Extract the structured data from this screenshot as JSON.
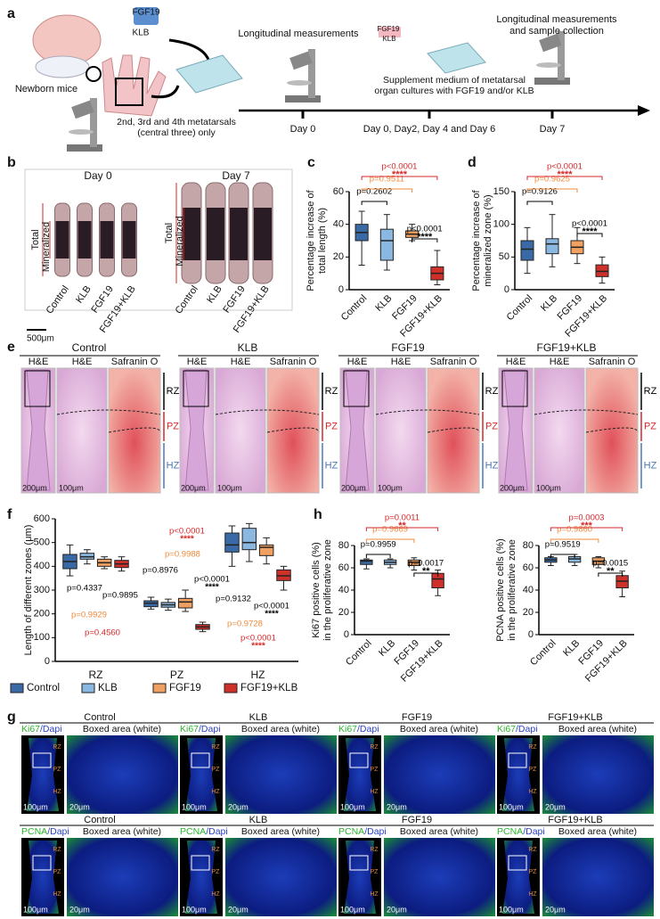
{
  "panel_labels": [
    "a",
    "b",
    "c",
    "d",
    "e",
    "f",
    "g",
    "h"
  ],
  "panel_a": {
    "newborn": "Newborn mice",
    "fgf19": "FGF19",
    "klb": "KLB",
    "metatarsals": [
      "2nd, 3rd and 4th metatarsals",
      "(central three) only"
    ],
    "step1": "Longitudinal measurements",
    "step2": [
      "Supplement medium of metatarsal",
      "organ cultures with FGF19 and/or KLB"
    ],
    "step3": [
      "Longitudinal measurements",
      "and sample collection"
    ],
    "timeline": [
      "Day 0",
      "Day 0, Day2, Day 4 and Day 6",
      "Day 7"
    ]
  },
  "panel_b": {
    "day0": "Day 0",
    "day7": "Day 7",
    "total": "Total",
    "mineralized": "Mineralized",
    "categories": [
      "Control",
      "KLB",
      "FGF19",
      "FGF19+KLB"
    ],
    "scale_bar": "500μm"
  },
  "chart_data": [
    {
      "type": "box",
      "ylabel": [
        "Percentage increase of",
        "total length (%)"
      ],
      "categories": [
        "Control",
        "KLB",
        "FGF19",
        "FGF19+KLB"
      ],
      "colors": [
        "#3a6aa6",
        "#8ab8e0",
        "#f0a060",
        "#d0302a"
      ],
      "min": [
        15,
        12,
        30,
        3
      ],
      "q1": [
        30,
        18,
        32,
        6
      ],
      "median": [
        35,
        30,
        34,
        10
      ],
      "q3": [
        40,
        37,
        36,
        14
      ],
      "max": [
        48,
        46,
        40,
        24
      ],
      "ylim": [
        0,
        60
      ],
      "yticks": [
        0,
        20,
        40,
        60
      ],
      "annotations": [
        {
          "text": "p=0.2602",
          "color": "#000000"
        },
        {
          "text": "p=0.9511",
          "color": "#f08a3c"
        },
        {
          "text": "p<0.0001",
          "stars": "****",
          "color": "#d62728"
        },
        {
          "text": "p<0.0001",
          "stars": "****",
          "color": "#000000"
        }
      ]
    },
    {
      "type": "box",
      "ylabel": [
        "Percentage increase of",
        "mineralized zone (%)"
      ],
      "categories": [
        "Control",
        "KLB",
        "FGF19",
        "FGF19+KLB"
      ],
      "colors": [
        "#3a6aa6",
        "#8ab8e0",
        "#f0a060",
        "#d0302a"
      ],
      "min": [
        25,
        35,
        40,
        10
      ],
      "q1": [
        45,
        55,
        55,
        20
      ],
      "median": [
        62,
        70,
        65,
        28
      ],
      "q3": [
        75,
        78,
        75,
        38
      ],
      "max": [
        95,
        115,
        95,
        50
      ],
      "ylim": [
        0,
        150
      ],
      "yticks": [
        0,
        50,
        100,
        150
      ],
      "annotations": [
        {
          "text": "p=0.9126",
          "color": "#000000"
        },
        {
          "text": "p=0.9625",
          "color": "#f08a3c"
        },
        {
          "text": "p<0.0001",
          "stars": "****",
          "color": "#d62728"
        },
        {
          "text": "p<0.0001",
          "stars": "****",
          "color": "#000000"
        }
      ]
    },
    {
      "type": "grouped_box",
      "ylabel": [
        "Length of different zones (μm)"
      ],
      "categories": [
        "RZ",
        "PZ",
        "HZ"
      ],
      "series": [
        {
          "name": "Control",
          "color": "#3a6aa6",
          "min": [
            360,
            220,
            400
          ],
          "q1": [
            390,
            230,
            460
          ],
          "median": [
            420,
            245,
            490
          ],
          "q3": [
            450,
            255,
            540
          ],
          "max": [
            490,
            270,
            570
          ]
        },
        {
          "name": "KLB",
          "color": "#8ab8e0",
          "min": [
            410,
            215,
            420
          ],
          "q1": [
            430,
            228,
            470
          ],
          "median": [
            440,
            238,
            500
          ],
          "q3": [
            455,
            248,
            560
          ],
          "max": [
            470,
            262,
            580
          ]
        },
        {
          "name": "FGF19",
          "color": "#f0a060",
          "min": [
            390,
            210,
            410
          ],
          "q1": [
            400,
            225,
            445
          ],
          "median": [
            415,
            250,
            480
          ],
          "q3": [
            430,
            265,
            490
          ],
          "max": [
            440,
            300,
            520
          ]
        },
        {
          "name": "FGF19+KLB",
          "color": "#d0302a",
          "min": [
            380,
            125,
            300
          ],
          "q1": [
            395,
            135,
            340
          ],
          "median": [
            410,
            145,
            360
          ],
          "q3": [
            425,
            155,
            385
          ],
          "max": [
            440,
            165,
            400
          ]
        }
      ],
      "ylim": [
        0,
        600
      ],
      "yticks": [
        0,
        100,
        200,
        300,
        400,
        500,
        600
      ],
      "annotations": [
        {
          "text": "p=0.4337",
          "color": "#000000"
        },
        {
          "text": "p=0.9895",
          "color": "#000000"
        },
        {
          "text": "p=0.9929",
          "color": "#f08a3c"
        },
        {
          "text": "p=0.4560",
          "color": "#d62728"
        },
        {
          "text": "p<0.0001",
          "stars": "****",
          "color": "#d62728"
        },
        {
          "text": "p=0.9988",
          "color": "#f08a3c"
        },
        {
          "text": "p=0.8976",
          "color": "#000000"
        },
        {
          "text": "p<0.0001",
          "stars": "****",
          "color": "#000000"
        },
        {
          "text": "p=0.9132",
          "color": "#000000"
        },
        {
          "text": "p<0.0001",
          "stars": "****",
          "color": "#000000"
        },
        {
          "text": "p=0.9728",
          "color": "#f08a3c"
        },
        {
          "text": "p<0.0001",
          "stars": "****",
          "color": "#d62728"
        }
      ]
    },
    {
      "type": "box",
      "ylabel": [
        "Ki67 positive cells (%)",
        "in the proliferative zone"
      ],
      "categories": [
        "Control",
        "KLB",
        "FGF19",
        "FGF19+KLB"
      ],
      "colors": [
        "#3a6aa6",
        "#8ab8e0",
        "#f0a060",
        "#d0302a"
      ],
      "min": [
        59,
        60,
        58,
        35
      ],
      "q1": [
        63,
        63,
        62,
        42
      ],
      "median": [
        66,
        65,
        65,
        50
      ],
      "q3": [
        67,
        67,
        67,
        55
      ],
      "max": [
        68,
        68,
        69,
        58
      ],
      "ylim": [
        0,
        80
      ],
      "yticks": [
        0,
        20,
        40,
        60,
        80
      ],
      "annotations": [
        {
          "text": "p=0.9959",
          "color": "#000000"
        },
        {
          "text": "p=0.9669",
          "color": "#f08a3c"
        },
        {
          "text": "p=0.0011",
          "stars": "**",
          "color": "#d62728"
        },
        {
          "text": "p=0.0017",
          "stars": "**",
          "color": "#000000"
        }
      ]
    },
    {
      "type": "box",
      "ylabel": [
        "PCNA positive cells (%)",
        "in the proliferative zone"
      ],
      "categories": [
        "Control",
        "KLB",
        "FGF19",
        "FGF19+KLB"
      ],
      "colors": [
        "#3a6aa6",
        "#8ab8e0",
        "#f0a060",
        "#d0302a"
      ],
      "min": [
        62,
        62,
        60,
        34
      ],
      "q1": [
        65,
        65,
        63,
        42
      ],
      "median": [
        67,
        68,
        66,
        48
      ],
      "q3": [
        69,
        70,
        69,
        53
      ],
      "max": [
        70,
        72,
        70,
        57
      ],
      "ylim": [
        0,
        80
      ],
      "yticks": [
        0,
        20,
        40,
        60,
        80
      ],
      "annotations": [
        {
          "text": "p=0.9519",
          "color": "#000000"
        },
        {
          "text": "p=0.9860",
          "color": "#f08a3c"
        },
        {
          "text": "p=0.0003",
          "stars": "***",
          "color": "#d62728"
        },
        {
          "text": "p=0.0015",
          "stars": "**",
          "color": "#000000"
        }
      ]
    }
  ],
  "panel_e": {
    "groups": [
      "Control",
      "KLB",
      "FGF19",
      "FGF19+KLB"
    ],
    "columns": [
      "H&E",
      "H&E",
      "Safranin O"
    ],
    "zones": [
      "RZ",
      "PZ",
      "HZ"
    ],
    "scale_bars": [
      "200μm",
      "100μm"
    ]
  },
  "panel_g": {
    "rows": [
      {
        "stain": "Ki67",
        "counterstain": "/Dapi"
      },
      {
        "stain": "PCNA",
        "counterstain": "/Dapi"
      }
    ],
    "groups": [
      "Control",
      "KLB",
      "FGF19",
      "FGF19+KLB"
    ],
    "boxed": "Boxed area (white)",
    "scale_bars": [
      "100μm",
      "20μm"
    ],
    "zones": [
      "RZ",
      "PZ",
      "HZ"
    ]
  }
}
